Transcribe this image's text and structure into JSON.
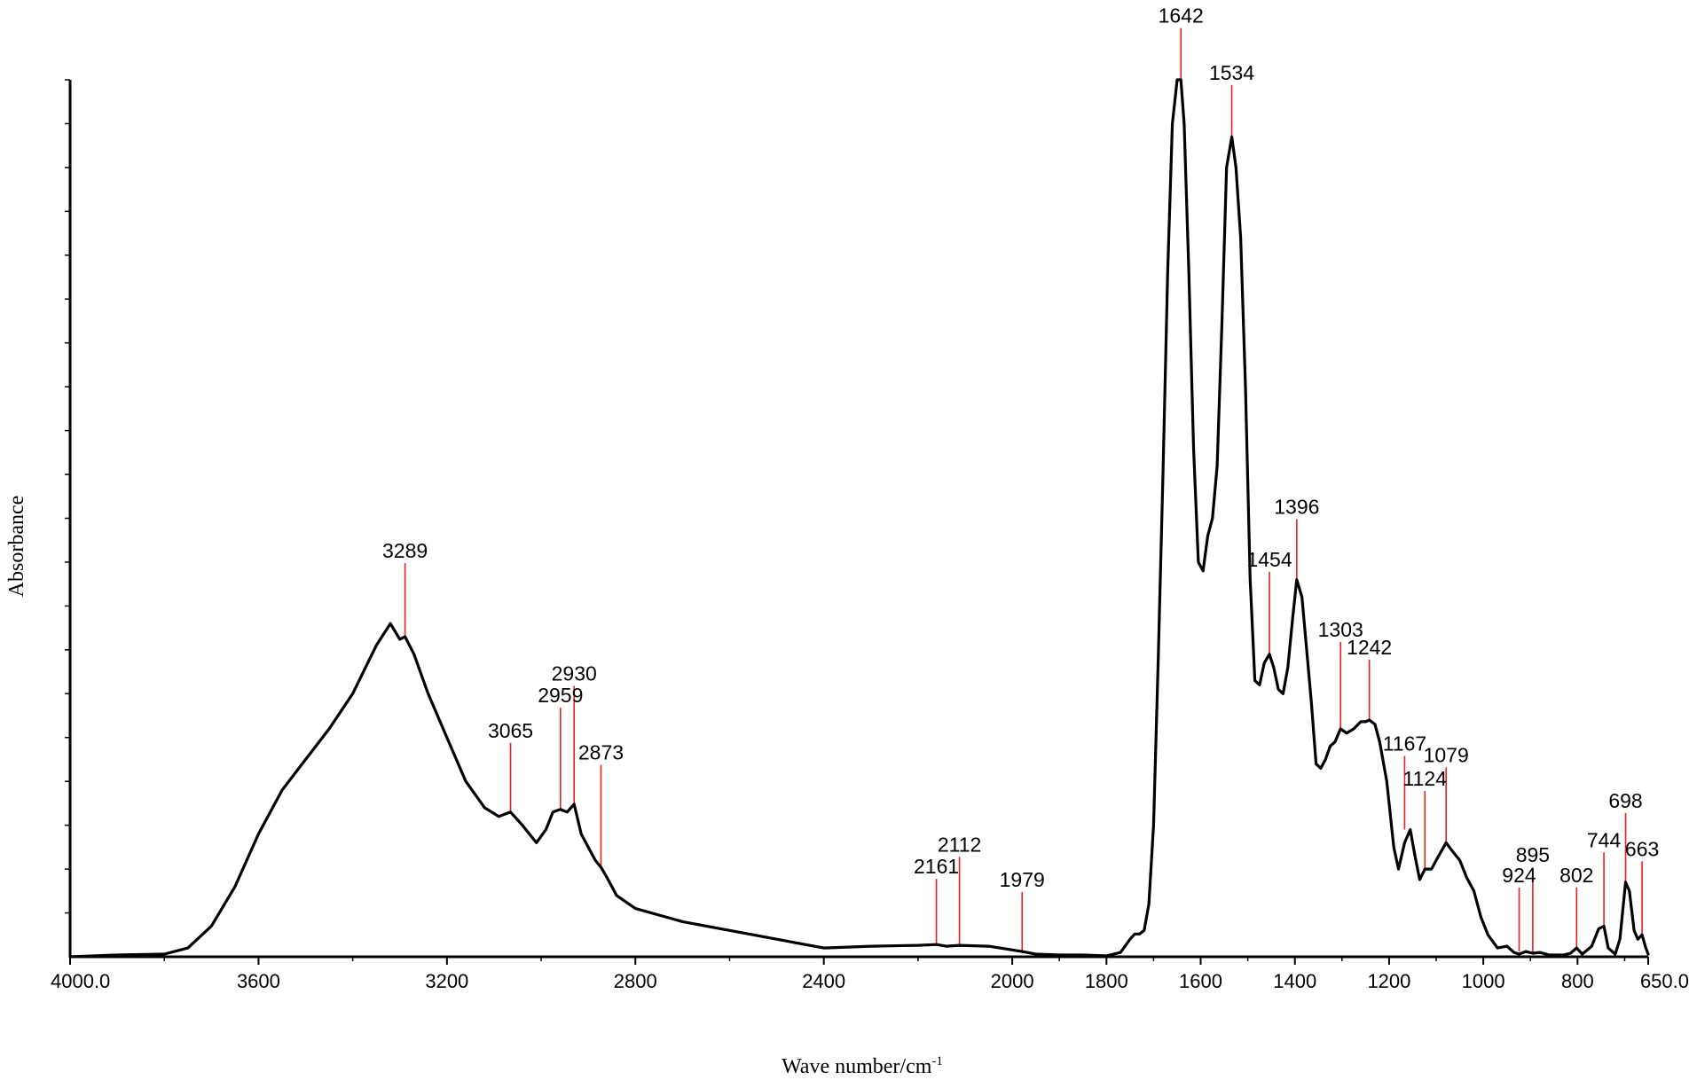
{
  "chart_data": {
    "type": "line",
    "title": "",
    "xlabel": "Wave number/cm",
    "xlabel_superscript": "-1",
    "ylabel": "Absorbance",
    "xlim": [
      4000.0,
      650.0
    ],
    "x_reversed": true,
    "ylim": [
      0,
      1.0
    ],
    "grid": false,
    "x_ticks": [
      {
        "value": 4000,
        "label": "4000.0"
      },
      {
        "value": 3600,
        "label": "3600"
      },
      {
        "value": 3200,
        "label": "3200"
      },
      {
        "value": 2800,
        "label": "2800"
      },
      {
        "value": 2400,
        "label": "2400"
      },
      {
        "value": 2000,
        "label": "2000"
      },
      {
        "value": 1800,
        "label": "1800"
      },
      {
        "value": 1600,
        "label": "1600"
      },
      {
        "value": 1400,
        "label": "1400"
      },
      {
        "value": 1200,
        "label": "1200"
      },
      {
        "value": 1000,
        "label": "1000"
      },
      {
        "value": 800,
        "label": "800"
      },
      {
        "value": 650,
        "label": "650.0"
      }
    ],
    "x_minor_ticks": [
      3800,
      3400,
      3000,
      2600,
      2200,
      1900,
      1700,
      1500,
      1300,
      1100,
      900,
      700
    ],
    "y_minor_ticks": [
      0.05,
      0.1,
      0.15,
      0.2,
      0.25,
      0.3,
      0.35,
      0.4,
      0.45,
      0.5,
      0.55,
      0.6,
      0.65,
      0.7,
      0.75,
      0.8,
      0.85,
      0.9,
      0.95,
      1.0
    ],
    "colors": {
      "spectrum": "#000000",
      "peak_marker": "#e8201e",
      "axis": "#000000"
    },
    "series": [
      {
        "x": [
          4000,
          3900,
          3800,
          3750,
          3700,
          3650,
          3600,
          3550,
          3500,
          3450,
          3400,
          3350,
          3320,
          3300,
          3289,
          3270,
          3240,
          3200,
          3160,
          3120,
          3090,
          3065,
          3040,
          3010,
          2990,
          2975,
          2959,
          2945,
          2930,
          2915,
          2900,
          2885,
          2873,
          2860,
          2840,
          2800,
          2700,
          2600,
          2500,
          2400,
          2300,
          2200,
          2161,
          2140,
          2112,
          2050,
          1979,
          1950,
          1900,
          1850,
          1800,
          1770,
          1750,
          1740,
          1730,
          1720,
          1710,
          1700,
          1690,
          1680,
          1670,
          1660,
          1650,
          1642,
          1635,
          1625,
          1615,
          1605,
          1595,
          1585,
          1575,
          1565,
          1555,
          1545,
          1534,
          1525,
          1515,
          1505,
          1495,
          1485,
          1475,
          1465,
          1454,
          1445,
          1435,
          1425,
          1415,
          1405,
          1396,
          1385,
          1375,
          1365,
          1355,
          1345,
          1335,
          1325,
          1315,
          1303,
          1290,
          1275,
          1260,
          1250,
          1242,
          1230,
          1220,
          1205,
          1190,
          1180,
          1167,
          1155,
          1145,
          1135,
          1124,
          1110,
          1095,
          1079,
          1065,
          1050,
          1035,
          1020,
          1005,
          990,
          970,
          950,
          935,
          924,
          910,
          895,
          880,
          860,
          830,
          815,
          802,
          790,
          770,
          755,
          744,
          735,
          720,
          710,
          698,
          690,
          680,
          672,
          663,
          655,
          650
        ],
        "y": [
          0.0,
          0.002,
          0.003,
          0.01,
          0.035,
          0.08,
          0.14,
          0.19,
          0.225,
          0.26,
          0.3,
          0.355,
          0.38,
          0.362,
          0.365,
          0.345,
          0.3,
          0.25,
          0.2,
          0.17,
          0.16,
          0.165,
          0.15,
          0.13,
          0.145,
          0.165,
          0.168,
          0.165,
          0.174,
          0.14,
          0.125,
          0.11,
          0.102,
          0.09,
          0.07,
          0.055,
          0.04,
          0.03,
          0.02,
          0.01,
          0.012,
          0.013,
          0.014,
          0.012,
          0.013,
          0.012,
          0.006,
          0.003,
          0.002,
          0.002,
          0.001,
          0.005,
          0.02,
          0.026,
          0.026,
          0.03,
          0.06,
          0.15,
          0.34,
          0.55,
          0.78,
          0.95,
          1.0,
          1.0,
          0.95,
          0.78,
          0.58,
          0.45,
          0.44,
          0.48,
          0.5,
          0.56,
          0.72,
          0.9,
          0.935,
          0.9,
          0.82,
          0.65,
          0.43,
          0.315,
          0.31,
          0.335,
          0.345,
          0.33,
          0.305,
          0.3,
          0.33,
          0.385,
          0.43,
          0.41,
          0.35,
          0.29,
          0.22,
          0.215,
          0.225,
          0.24,
          0.245,
          0.26,
          0.255,
          0.26,
          0.268,
          0.268,
          0.27,
          0.265,
          0.245,
          0.2,
          0.125,
          0.1,
          0.13,
          0.145,
          0.115,
          0.088,
          0.1,
          0.1,
          0.115,
          0.13,
          0.12,
          0.11,
          0.09,
          0.075,
          0.045,
          0.025,
          0.01,
          0.012,
          0.005,
          0.003,
          0.006,
          0.004,
          0.005,
          0.002,
          0.002,
          0.004,
          0.01,
          0.003,
          0.012,
          0.032,
          0.035,
          0.01,
          0.003,
          0.02,
          0.085,
          0.075,
          0.03,
          0.02,
          0.025,
          0.01,
          0.003
        ]
      }
    ],
    "peaks": [
      {
        "label": "3289",
        "x": 3289,
        "y": 0.365,
        "label_y": 0.455
      },
      {
        "label": "3065",
        "x": 3065,
        "y": 0.165,
        "label_y": 0.25
      },
      {
        "label": "2959",
        "x": 2959,
        "y": 0.168,
        "label_y": 0.29
      },
      {
        "label": "2930",
        "x": 2930,
        "y": 0.174,
        "label_y": 0.315
      },
      {
        "label": "2873",
        "x": 2873,
        "y": 0.102,
        "label_y": 0.225
      },
      {
        "label": "2161",
        "x": 2161,
        "y": 0.014,
        "label_y": 0.095
      },
      {
        "label": "2112",
        "x": 2112,
        "y": 0.013,
        "label_y": 0.12
      },
      {
        "label": "1979",
        "x": 1979,
        "y": 0.006,
        "label_y": 0.08
      },
      {
        "label": "1642",
        "x": 1642,
        "y": 1.0,
        "label_y": 1.065
      },
      {
        "label": "1534",
        "x": 1534,
        "y": 0.935,
        "label_y": 1.0
      },
      {
        "label": "1454",
        "x": 1454,
        "y": 0.345,
        "label_y": 0.445
      },
      {
        "label": "1396",
        "x": 1396,
        "y": 0.43,
        "label_y": 0.505
      },
      {
        "label": "1303",
        "x": 1303,
        "y": 0.26,
        "label_y": 0.365
      },
      {
        "label": "1242",
        "x": 1242,
        "y": 0.27,
        "label_y": 0.345
      },
      {
        "label": "1167",
        "x": 1167,
        "y": 0.145,
        "label_y": 0.235
      },
      {
        "label": "1124",
        "x": 1124,
        "y": 0.1,
        "label_y": 0.195
      },
      {
        "label": "1079",
        "x": 1079,
        "y": 0.13,
        "label_y": 0.222
      },
      {
        "label": "924",
        "x": 924,
        "y": 0.006,
        "label_y": 0.085
      },
      {
        "label": "895",
        "x": 895,
        "y": 0.005,
        "label_y": 0.108
      },
      {
        "label": "802",
        "x": 802,
        "y": 0.01,
        "label_y": 0.085
      },
      {
        "label": "744",
        "x": 744,
        "y": 0.035,
        "label_y": 0.125
      },
      {
        "label": "698",
        "x": 698,
        "y": 0.085,
        "label_y": 0.17
      },
      {
        "label": "663",
        "x": 663,
        "y": 0.025,
        "label_y": 0.115
      }
    ]
  }
}
